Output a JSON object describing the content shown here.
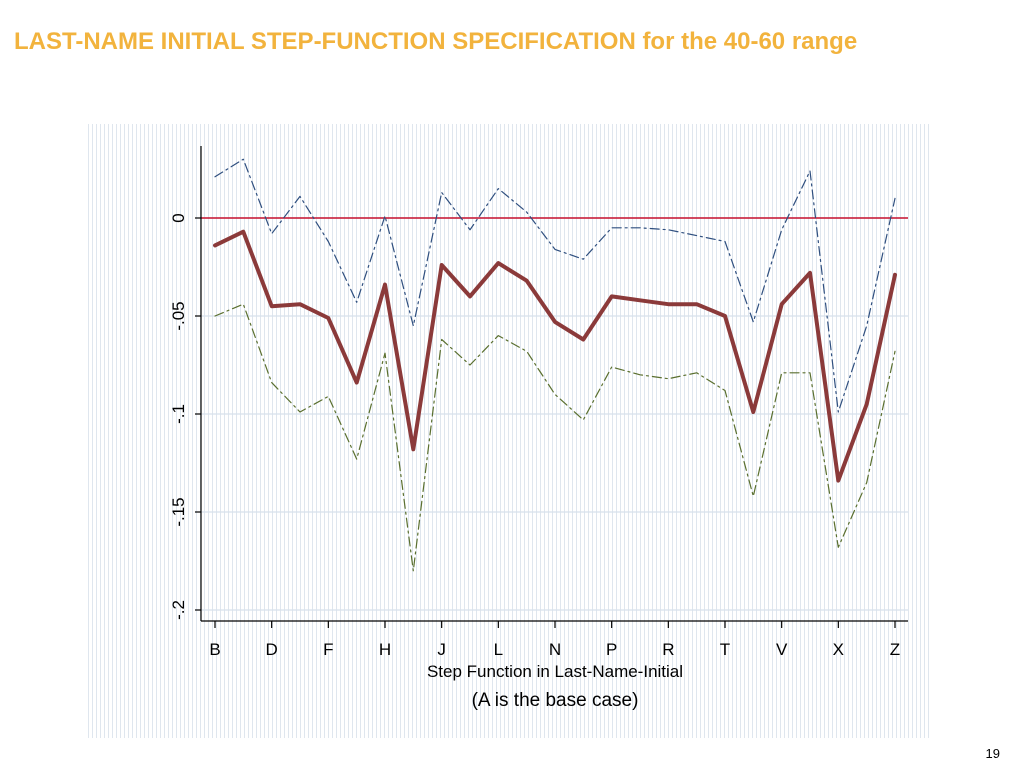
{
  "slide": {
    "title": "LAST-NAME INITIAL STEP-FUNCTION SPECIFICATION for the 40-60 range",
    "page_number": "19",
    "title_color": "#f2b33d"
  },
  "chart_data": {
    "type": "line",
    "title": "",
    "xlabel": "Step Function in Last-Name-Initial",
    "xlabel_sub": "(A is the base case)",
    "ylabel": "",
    "ylim": [
      -0.2,
      0.03
    ],
    "yticks": [
      0,
      -0.05,
      -0.1,
      -0.15,
      -0.2
    ],
    "ytick_labels": [
      "0",
      "-.05",
      "-.1",
      "-.15",
      "-.2"
    ],
    "categories": [
      "B",
      "C",
      "D",
      "E",
      "F",
      "G",
      "H",
      "I",
      "J",
      "K",
      "L",
      "M",
      "N",
      "O",
      "P",
      "Q",
      "R",
      "S",
      "T",
      "U",
      "V",
      "W",
      "X",
      "Y",
      "Z"
    ],
    "xtick_labels": [
      "B",
      "D",
      "F",
      "H",
      "J",
      "L",
      "N",
      "P",
      "R",
      "T",
      "V",
      "X",
      "Z"
    ],
    "grid": true,
    "reference_line": {
      "y": 0,
      "color": "#c8102e"
    },
    "series": [
      {
        "role": "estimate",
        "color": "#8b3a3a",
        "style": "solid",
        "values": [
          -0.014,
          -0.007,
          -0.045,
          -0.044,
          -0.051,
          -0.084,
          -0.034,
          -0.118,
          -0.024,
          -0.04,
          -0.023,
          -0.032,
          -0.053,
          -0.062,
          -0.04,
          -0.042,
          -0.044,
          -0.044,
          -0.05,
          -0.099,
          -0.044,
          -0.028,
          -0.134,
          -0.095,
          -0.029
        ]
      },
      {
        "role": "upper-bound",
        "color": "#2f4f7f",
        "style": "dash-dot",
        "values": [
          0.021,
          0.03,
          -0.008,
          0.011,
          -0.012,
          -0.043,
          0.001,
          -0.055,
          0.013,
          -0.006,
          0.015,
          0.003,
          -0.016,
          -0.021,
          -0.005,
          -0.005,
          -0.006,
          -0.009,
          -0.012,
          -0.053,
          -0.006,
          0.024,
          -0.099,
          -0.055,
          0.01
        ]
      },
      {
        "role": "lower-bound",
        "color": "#5a6f2e",
        "style": "dash-dot",
        "values": [
          -0.05,
          -0.044,
          -0.084,
          -0.099,
          -0.091,
          -0.123,
          -0.069,
          -0.18,
          -0.062,
          -0.075,
          -0.06,
          -0.068,
          -0.09,
          -0.103,
          -0.076,
          -0.08,
          -0.082,
          -0.079,
          -0.088,
          -0.142,
          -0.079,
          -0.079,
          -0.168,
          -0.135,
          -0.068
        ]
      }
    ]
  }
}
